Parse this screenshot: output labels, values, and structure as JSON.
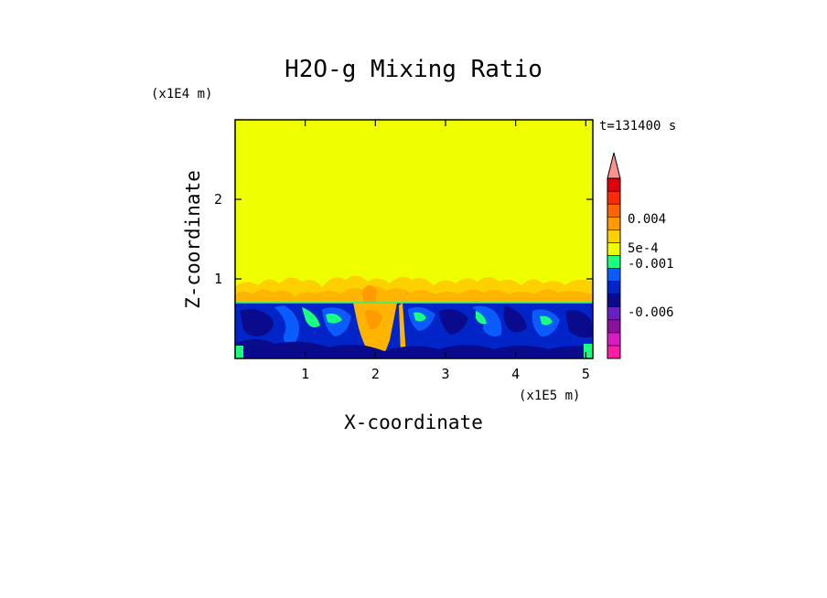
{
  "chart_data": {
    "type": "heatmap",
    "title": "H2O-g Mixing Ratio",
    "xlabel": "X-coordinate",
    "ylabel": "Z-coordinate",
    "x_scale_note": "(x1E5 m)",
    "y_scale_note": "(x1E4 m)",
    "time_label": "t=131400 s",
    "xlim": [
      0,
      5.1
    ],
    "ylim": [
      0,
      3.0
    ],
    "x_ticks": [
      "1",
      "2",
      "3",
      "4",
      "5"
    ],
    "x_tick_values": [
      1,
      2,
      3,
      4,
      5
    ],
    "y_ticks": [
      "1",
      "2"
    ],
    "y_tick_values": [
      1,
      2
    ],
    "regions": [
      {
        "z_range": [
          0,
          0.7
        ],
        "description": "turbulent layer",
        "dominant_color": "#0024c8"
      },
      {
        "z_range": [
          0.7,
          1.05
        ],
        "description": "transition layer",
        "dominant_color": "#ffb400"
      },
      {
        "z_range": [
          1.05,
          3.0
        ],
        "description": "upper layer",
        "dominant_color": "#f0ff00"
      }
    ],
    "colorbar": {
      "extend": "max",
      "colors": [
        "#ff1aa8",
        "#d81bc4",
        "#8c0fa0",
        "#6a1fc0",
        "#0a0a8c",
        "#0024c8",
        "#0a5cff",
        "#1aff80",
        "#f0ff00",
        "#ffd000",
        "#ff9a00",
        "#ff6400",
        "#ff2a00",
        "#e00010",
        "#ff9090"
      ],
      "labels": [
        "0.004",
        "5e-4",
        "-0.001",
        "-0.006"
      ]
    }
  }
}
